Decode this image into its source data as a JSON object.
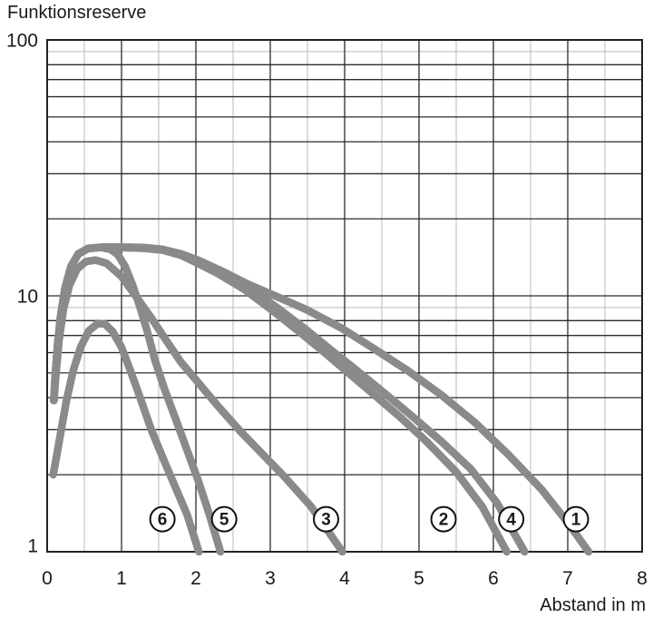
{
  "title": "Funktionsreserve",
  "x_axis_label": "Abstand in m",
  "colors": {
    "curve": "#8a8a8a",
    "grid_major": "#2b2b2b",
    "grid_minor": "#b9b9b9",
    "border": "#222222",
    "text": "#1a1a1a",
    "background": "#ffffff"
  },
  "chart_data": {
    "type": "line",
    "title": "Funktionsreserve",
    "xlabel": "Abstand in m",
    "ylabel": "Funktionsreserve",
    "x_scale": "linear",
    "y_scale": "log",
    "x_range": [
      0,
      8
    ],
    "y_range": [
      1,
      100
    ],
    "x_tick_labels": [
      "0",
      "1",
      "2",
      "3",
      "4",
      "5",
      "6",
      "7",
      "8"
    ],
    "y_tick_labels": [
      {
        "value": 1,
        "text": "1"
      },
      {
        "value": 10,
        "text": "10"
      },
      {
        "value": 100,
        "text": "100"
      }
    ],
    "grid": {
      "vertical_major_step": 1,
      "vertical_minor_step": 0.5,
      "horizontal_log_minors": [
        2,
        3,
        4,
        5,
        6,
        7,
        8,
        9,
        20,
        30,
        40,
        50,
        60,
        70,
        80,
        90
      ],
      "light_horizontal_values": [
        9,
        90
      ]
    },
    "series": [
      {
        "name": "curve-1",
        "label": "1",
        "points": [
          [
            0.09,
            3.9
          ],
          [
            0.11,
            4.9
          ],
          [
            0.14,
            6.4
          ],
          [
            0.18,
            8.3
          ],
          [
            0.24,
            10.7
          ],
          [
            0.32,
            13.0
          ],
          [
            0.42,
            14.6
          ],
          [
            0.55,
            15.3
          ],
          [
            0.75,
            15.5
          ],
          [
            1.0,
            15.5
          ],
          [
            1.3,
            15.45
          ],
          [
            1.55,
            15.2
          ],
          [
            1.8,
            14.6
          ],
          [
            2.05,
            13.7
          ],
          [
            2.35,
            12.5
          ],
          [
            2.7,
            11.1
          ],
          [
            3.1,
            9.9
          ],
          [
            3.5,
            8.8
          ],
          [
            3.95,
            7.5
          ],
          [
            4.4,
            6.2
          ],
          [
            4.85,
            5.1
          ],
          [
            5.3,
            4.1
          ],
          [
            5.75,
            3.2
          ],
          [
            6.2,
            2.4
          ],
          [
            6.65,
            1.75
          ],
          [
            7.0,
            1.3
          ],
          [
            7.28,
            1.0
          ]
        ]
      },
      {
        "name": "curve-2",
        "label": "2",
        "points": [
          [
            0.09,
            3.9
          ],
          [
            0.11,
            4.9
          ],
          [
            0.14,
            6.4
          ],
          [
            0.18,
            8.3
          ],
          [
            0.24,
            10.7
          ],
          [
            0.32,
            13.0
          ],
          [
            0.42,
            14.6
          ],
          [
            0.55,
            15.3
          ],
          [
            0.75,
            15.5
          ],
          [
            1.0,
            15.45
          ],
          [
            1.3,
            15.35
          ],
          [
            1.55,
            15.1
          ],
          [
            1.8,
            14.4
          ],
          [
            2.0,
            13.5
          ],
          [
            2.3,
            12.2
          ],
          [
            2.65,
            10.6
          ],
          [
            3.0,
            8.9
          ],
          [
            3.35,
            7.4
          ],
          [
            3.7,
            6.1
          ],
          [
            4.05,
            5.0
          ],
          [
            4.4,
            4.1
          ],
          [
            4.75,
            3.35
          ],
          [
            5.1,
            2.7
          ],
          [
            5.5,
            2.05
          ],
          [
            5.85,
            1.5
          ],
          [
            6.18,
            1.0
          ]
        ]
      },
      {
        "name": "curve-3",
        "label": "3",
        "points": [
          [
            0.09,
            3.9
          ],
          [
            0.12,
            5.0
          ],
          [
            0.16,
            6.7
          ],
          [
            0.22,
            8.9
          ],
          [
            0.3,
            11.0
          ],
          [
            0.4,
            12.7
          ],
          [
            0.52,
            13.6
          ],
          [
            0.65,
            13.8
          ],
          [
            0.8,
            13.4
          ],
          [
            1.0,
            11.9
          ],
          [
            1.2,
            9.9
          ],
          [
            1.4,
            8.2
          ],
          [
            1.6,
            6.7
          ],
          [
            1.8,
            5.5
          ],
          [
            2.0,
            4.7
          ],
          [
            2.3,
            3.7
          ],
          [
            2.6,
            2.95
          ],
          [
            2.9,
            2.4
          ],
          [
            3.2,
            1.95
          ],
          [
            3.55,
            1.5
          ],
          [
            3.97,
            1.0
          ]
        ]
      },
      {
        "name": "curve-4",
        "label": "4",
        "points": [
          [
            0.09,
            3.9
          ],
          [
            0.11,
            4.9
          ],
          [
            0.14,
            6.4
          ],
          [
            0.18,
            8.3
          ],
          [
            0.24,
            10.7
          ],
          [
            0.32,
            13.0
          ],
          [
            0.42,
            14.6
          ],
          [
            0.55,
            15.3
          ],
          [
            0.75,
            15.5
          ],
          [
            1.0,
            15.45
          ],
          [
            1.3,
            15.35
          ],
          [
            1.55,
            15.1
          ],
          [
            1.85,
            14.4
          ],
          [
            2.05,
            13.5
          ],
          [
            2.35,
            12.2
          ],
          [
            2.75,
            10.6
          ],
          [
            3.1,
            8.95
          ],
          [
            3.45,
            7.5
          ],
          [
            3.8,
            6.2
          ],
          [
            4.15,
            5.15
          ],
          [
            4.5,
            4.25
          ],
          [
            4.9,
            3.4
          ],
          [
            5.3,
            2.7
          ],
          [
            5.7,
            2.1
          ],
          [
            6.05,
            1.55
          ],
          [
            6.42,
            1.0
          ]
        ]
      },
      {
        "name": "curve-5",
        "label": "5",
        "points": [
          [
            0.09,
            3.9
          ],
          [
            0.11,
            4.9
          ],
          [
            0.14,
            6.4
          ],
          [
            0.18,
            8.3
          ],
          [
            0.24,
            10.7
          ],
          [
            0.32,
            13.0
          ],
          [
            0.42,
            14.6
          ],
          [
            0.55,
            15.3
          ],
          [
            0.72,
            15.45
          ],
          [
            0.85,
            15.2
          ],
          [
            0.95,
            14.5
          ],
          [
            1.05,
            13.0
          ],
          [
            1.15,
            11.0
          ],
          [
            1.25,
            9.0
          ],
          [
            1.35,
            7.2
          ],
          [
            1.45,
            5.6
          ],
          [
            1.58,
            4.3
          ],
          [
            1.72,
            3.35
          ],
          [
            1.88,
            2.5
          ],
          [
            2.03,
            1.9
          ],
          [
            2.18,
            1.4
          ],
          [
            2.33,
            1.0
          ]
        ]
      },
      {
        "name": "curve-6",
        "label": "6",
        "points": [
          [
            0.08,
            2.0
          ],
          [
            0.12,
            2.3
          ],
          [
            0.18,
            2.9
          ],
          [
            0.26,
            3.9
          ],
          [
            0.35,
            5.1
          ],
          [
            0.45,
            6.3
          ],
          [
            0.56,
            7.3
          ],
          [
            0.68,
            7.8
          ],
          [
            0.78,
            7.75
          ],
          [
            0.88,
            7.25
          ],
          [
            1.0,
            6.3
          ],
          [
            1.12,
            5.1
          ],
          [
            1.25,
            4.0
          ],
          [
            1.4,
            3.0
          ],
          [
            1.55,
            2.35
          ],
          [
            1.72,
            1.8
          ],
          [
            1.88,
            1.4
          ],
          [
            2.04,
            1.0
          ]
        ]
      }
    ],
    "curve_labels": [
      {
        "text": "6",
        "x": 1.55,
        "y": 1.34
      },
      {
        "text": "5",
        "x": 2.38,
        "y": 1.34
      },
      {
        "text": "3",
        "x": 3.75,
        "y": 1.34
      },
      {
        "text": "2",
        "x": 5.33,
        "y": 1.34
      },
      {
        "text": "4",
        "x": 6.24,
        "y": 1.34
      },
      {
        "text": "1",
        "x": 7.11,
        "y": 1.34
      }
    ],
    "legend_position": "none"
  }
}
